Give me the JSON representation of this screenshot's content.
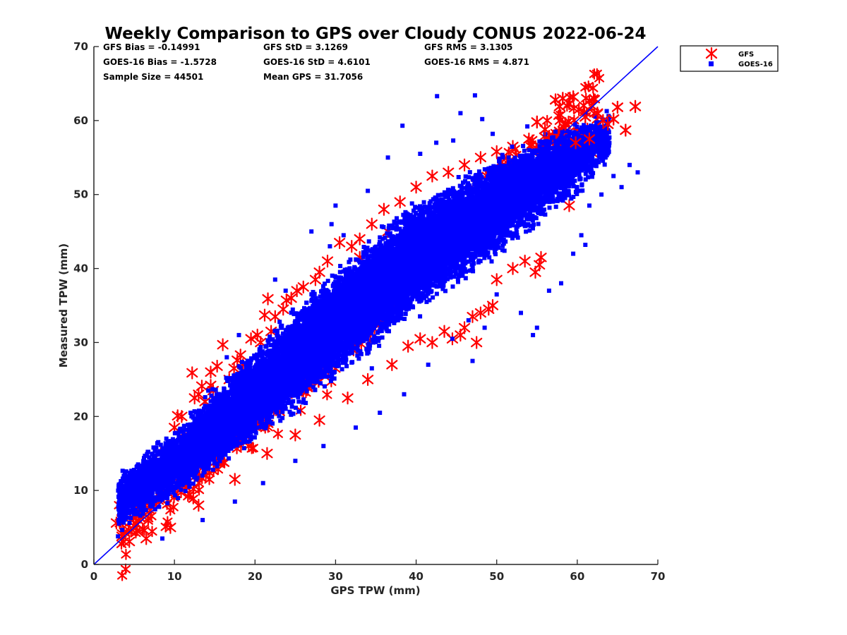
{
  "chart_data": {
    "type": "scatter",
    "title": "Weekly Comparison to GPS over Cloudy CONUS 2022-06-24",
    "xlabel": "GPS TPW (mm)",
    "ylabel": "Measured TPW (mm)",
    "xlim": [
      0,
      70
    ],
    "ylim": [
      0,
      70
    ],
    "xticks": [
      "0",
      "10",
      "20",
      "30",
      "40",
      "50",
      "60",
      "70"
    ],
    "yticks": [
      "0",
      "10",
      "20",
      "30",
      "40",
      "50",
      "60",
      "70"
    ],
    "grid": false,
    "legend_position": "outside top-right",
    "stats": [
      [
        "GFS Bias = -0.14991",
        "GFS StD = 3.1269",
        "GFS RMS = 3.1305"
      ],
      [
        "GOES-16 Bias = -1.5728",
        "GOES-16 StD = 4.6101",
        "GOES-16 RMS = 4.871"
      ],
      [
        "Sample Size = 44501",
        "Mean GPS = 31.7056",
        ""
      ]
    ],
    "reference_line": {
      "from": [
        0,
        0
      ],
      "to": [
        70,
        70
      ],
      "color": "#0000ff"
    },
    "series": [
      {
        "name": "GFS",
        "marker": "asterisk",
        "color": "#ff0000",
        "points": [
          [
            2.8,
            5.6
          ],
          [
            3.5,
            7.2
          ],
          [
            4.0,
            7.8
          ],
          [
            4.4,
            3.1
          ],
          [
            4.8,
            8.8
          ],
          [
            5.5,
            6.0
          ],
          [
            6.3,
            10.5
          ],
          [
            6.8,
            11.6
          ],
          [
            7.2,
            11.9
          ],
          [
            8.3,
            15.0
          ],
          [
            9.0,
            14.2
          ],
          [
            9.8,
            16.0
          ],
          [
            10.0,
            18.5
          ],
          [
            10.4,
            20.1
          ],
          [
            10.9,
            20.0
          ],
          [
            11.5,
            17.0
          ],
          [
            12.2,
            25.9
          ],
          [
            12.5,
            22.5
          ],
          [
            13.0,
            23.0
          ],
          [
            13.4,
            24.1
          ],
          [
            13.8,
            22.0
          ],
          [
            14.5,
            24.2
          ],
          [
            14.5,
            26.0
          ],
          [
            14.8,
            23.5
          ],
          [
            15.3,
            26.8
          ],
          [
            16.0,
            29.7
          ],
          [
            16.8,
            25.0
          ],
          [
            17.4,
            26.5
          ],
          [
            17.8,
            27.6
          ],
          [
            18.2,
            28.3
          ],
          [
            18.5,
            27.0
          ],
          [
            19.5,
            30.5
          ],
          [
            20.3,
            31.0
          ],
          [
            20.7,
            30.0
          ],
          [
            21.2,
            33.7
          ],
          [
            21.6,
            35.9
          ],
          [
            22.0,
            31.5
          ],
          [
            22.5,
            33.5
          ],
          [
            23.5,
            34.5
          ],
          [
            23.9,
            35.7
          ],
          [
            24.5,
            36.0
          ],
          [
            25.2,
            37.0
          ],
          [
            26.0,
            37.5
          ],
          [
            27.5,
            38.5
          ],
          [
            28.0,
            39.5
          ],
          [
            29.0,
            41.0
          ],
          [
            30.5,
            43.5
          ],
          [
            32.0,
            43.0
          ],
          [
            33.0,
            44.0
          ],
          [
            34.5,
            46.0
          ],
          [
            36.0,
            48.0
          ],
          [
            38.0,
            49.0
          ],
          [
            40.0,
            51.0
          ],
          [
            42.0,
            52.5
          ],
          [
            44.0,
            53.0
          ],
          [
            46.0,
            54.0
          ],
          [
            48.0,
            55.0
          ],
          [
            50.0,
            55.8
          ],
          [
            52.0,
            56.5
          ],
          [
            54.0,
            57.5
          ],
          [
            55.0,
            59.8
          ],
          [
            56.0,
            58.8
          ],
          [
            57.3,
            62.8
          ],
          [
            57.8,
            61.9
          ],
          [
            58.2,
            63.0
          ],
          [
            59.0,
            62.3
          ],
          [
            59.5,
            63.2
          ],
          [
            60.2,
            61.5
          ],
          [
            61.0,
            60.5
          ],
          [
            61.8,
            62.0
          ],
          [
            62.5,
            61.0
          ],
          [
            63.2,
            60.0
          ],
          [
            63.8,
            59.5
          ],
          [
            64.5,
            60.2
          ],
          [
            65.0,
            61.8
          ],
          [
            66.0,
            58.7
          ],
          [
            67.2,
            61.9
          ],
          [
            58.5,
            59.5
          ],
          [
            59.8,
            57.0
          ],
          [
            61.5,
            57.5
          ],
          [
            62.0,
            55.5
          ],
          [
            60.5,
            54.5
          ],
          [
            59.0,
            48.5
          ],
          [
            55.5,
            41.5
          ],
          [
            55.3,
            40.5
          ],
          [
            54.8,
            39.5
          ],
          [
            53.5,
            41.0
          ],
          [
            52.0,
            40.0
          ],
          [
            50.0,
            38.5
          ],
          [
            49.5,
            35.0
          ],
          [
            49.0,
            34.5
          ],
          [
            48.0,
            34.0
          ],
          [
            47.0,
            33.5
          ],
          [
            46.0,
            32.0
          ],
          [
            45.5,
            31.0
          ],
          [
            44.5,
            30.5
          ],
          [
            43.5,
            31.5
          ],
          [
            42.0,
            30.0
          ],
          [
            47.5,
            30.0
          ],
          [
            40.5,
            30.5
          ],
          [
            39.0,
            29.5
          ],
          [
            37.0,
            27.0
          ],
          [
            34.0,
            25.0
          ],
          [
            31.5,
            22.5
          ],
          [
            28.0,
            19.5
          ],
          [
            25.0,
            17.5
          ],
          [
            21.5,
            15.0
          ],
          [
            17.5,
            11.5
          ],
          [
            13.0,
            8.0
          ],
          [
            9.5,
            5.0
          ],
          [
            6.5,
            3.5
          ],
          [
            3.5,
            3.8
          ],
          [
            33.0,
            41.5
          ],
          [
            28.5,
            34.0
          ],
          [
            36.5,
            45.0
          ],
          [
            26.5,
            26.0
          ],
          [
            30.0,
            33.0
          ],
          [
            35.5,
            36.0
          ],
          [
            24.0,
            27.0
          ],
          [
            42.5,
            46.0
          ]
        ]
      },
      {
        "name": "GOES-16",
        "marker": "square",
        "color": "#0000ff",
        "band": {
          "x_range": [
            3,
            64
          ],
          "x_profile": [
            [
              3,
              4,
              13,
              0.8
            ],
            [
              10,
              8,
              19,
              1.2
            ],
            [
              20,
              16,
              30,
              2.4
            ],
            [
              30,
              24,
              41,
              2.6
            ],
            [
              40,
              33,
              50,
              2.6
            ],
            [
              50,
              41,
              56,
              2.0
            ],
            [
              60,
              49,
              61,
              1.1
            ],
            [
              64,
              54,
              62,
              0.5
            ]
          ],
          "count": 18000
        },
        "outliers": [
          [
            42.6,
            63.3
          ],
          [
            47.3,
            63.4
          ],
          [
            38.3,
            59.3
          ],
          [
            44.6,
            57.3
          ],
          [
            49.5,
            58.2
          ],
          [
            53.8,
            59.2
          ],
          [
            57.3,
            58.5
          ],
          [
            40.5,
            55.5
          ],
          [
            42.5,
            57.0
          ],
          [
            45.5,
            61.0
          ],
          [
            48.2,
            60.2
          ],
          [
            36.5,
            55.0
          ],
          [
            34.0,
            50.5
          ],
          [
            30.0,
            48.5
          ],
          [
            29.5,
            46.0
          ],
          [
            27.0,
            45.0
          ],
          [
            29.3,
            43.0
          ],
          [
            31.0,
            44.5
          ],
          [
            23.8,
            37.0
          ],
          [
            22.5,
            38.5
          ],
          [
            18.0,
            31.0
          ],
          [
            16.5,
            28.0
          ],
          [
            14.2,
            23.5
          ],
          [
            12.0,
            20.5
          ],
          [
            9.0,
            17.0
          ],
          [
            7.0,
            13.0
          ],
          [
            5.5,
            10.0
          ],
          [
            4.0,
            8.5
          ],
          [
            3.0,
            3.8
          ],
          [
            8.5,
            3.5
          ],
          [
            13.5,
            6.0
          ],
          [
            17.5,
            8.5
          ],
          [
            21.0,
            11.0
          ],
          [
            25.0,
            14.0
          ],
          [
            28.5,
            16.0
          ],
          [
            32.5,
            18.5
          ],
          [
            35.5,
            20.5
          ],
          [
            38.5,
            23.0
          ],
          [
            41.5,
            27.0
          ],
          [
            44.5,
            30.5
          ],
          [
            46.5,
            33.0
          ],
          [
            47.0,
            27.5
          ],
          [
            48.5,
            32.0
          ],
          [
            50.0,
            36.5
          ],
          [
            53.0,
            34.0
          ],
          [
            54.5,
            31.0
          ],
          [
            55.0,
            32.0
          ],
          [
            56.5,
            37.0
          ],
          [
            58.0,
            38.0
          ],
          [
            59.5,
            42.0
          ],
          [
            60.5,
            44.5
          ],
          [
            61.5,
            48.5
          ],
          [
            63.0,
            50.0
          ],
          [
            64.5,
            52.5
          ],
          [
            65.5,
            51.0
          ],
          [
            66.5,
            54.0
          ],
          [
            67.5,
            53.0
          ],
          [
            63.5,
            55.0
          ],
          [
            61.0,
            43.2
          ],
          [
            55.5,
            49.5
          ],
          [
            51.5,
            51.0
          ],
          [
            45.0,
            40.5
          ],
          [
            39.0,
            35.5
          ],
          [
            34.5,
            26.5
          ]
        ]
      }
    ]
  }
}
